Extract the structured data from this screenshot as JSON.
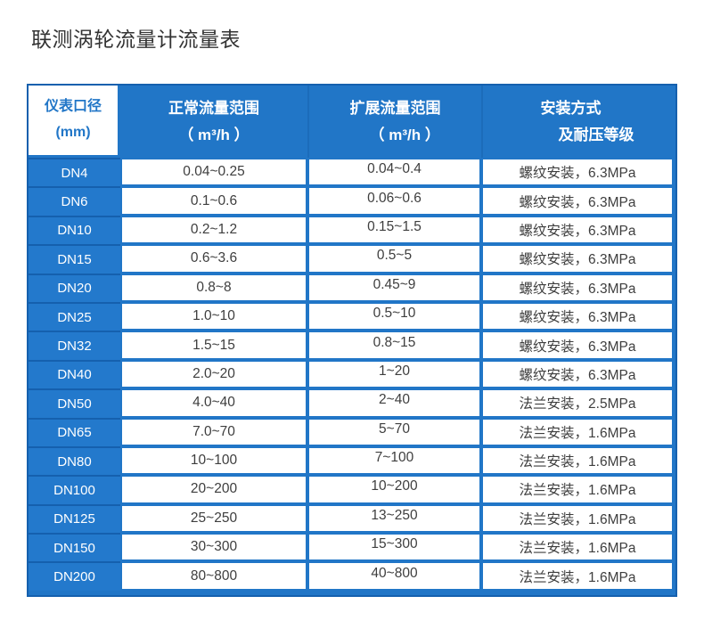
{
  "page": {
    "title": "联测涡轮流量计流量表"
  },
  "colors": {
    "primary_blue": "#2176C7",
    "dark_blue_border": "#1560AE",
    "dn_cell_blue": "#2379CC",
    "header_text": "#FFFFFF",
    "diameter_header_text": "#2176C7",
    "body_text": "#3E3E3E",
    "title_text": "#333333"
  },
  "table": {
    "header": {
      "diameter_line1": "仪表口径",
      "diameter_line2": "(mm)",
      "normal_line1": "正常流量范围",
      "normal_line2": "（ m³/h ）",
      "extended_line1": "扩展流量范围",
      "extended_line2": "（ m³/h ）",
      "install_line1": "安装方式",
      "install_line2": "及耐压等级"
    },
    "rows": [
      {
        "dn": "DN4",
        "normal": "0.04~0.25",
        "extended": "0.04~0.4",
        "install": "螺纹安装，6.3MPa"
      },
      {
        "dn": "DN6",
        "normal": "0.1~0.6",
        "extended": "0.06~0.6",
        "install": "螺纹安装，6.3MPa"
      },
      {
        "dn": "DN10",
        "normal": "0.2~1.2",
        "extended": "0.15~1.5",
        "install": "螺纹安装，6.3MPa"
      },
      {
        "dn": "DN15",
        "normal": "0.6~3.6",
        "extended": "0.5~5",
        "install": "螺纹安装，6.3MPa"
      },
      {
        "dn": "DN20",
        "normal": "0.8~8",
        "extended": "0.45~9",
        "install": "螺纹安装，6.3MPa"
      },
      {
        "dn": "DN25",
        "normal": "1.0~10",
        "extended": "0.5~10",
        "install": "螺纹安装，6.3MPa"
      },
      {
        "dn": "DN32",
        "normal": "1.5~15",
        "extended": "0.8~15",
        "install": "螺纹安装，6.3MPa"
      },
      {
        "dn": "DN40",
        "normal": "2.0~20",
        "extended": "1~20",
        "install": "螺纹安装，6.3MPa"
      },
      {
        "dn": "DN50",
        "normal": "4.0~40",
        "extended": "2~40",
        "install": "法兰安装，2.5MPa"
      },
      {
        "dn": "DN65",
        "normal": "7.0~70",
        "extended": "5~70",
        "install": "法兰安装，1.6MPa"
      },
      {
        "dn": "DN80",
        "normal": "10~100",
        "extended": "7~100",
        "install": "法兰安装，1.6MPa"
      },
      {
        "dn": "DN100",
        "normal": "20~200",
        "extended": "10~200",
        "install": "法兰安装，1.6MPa"
      },
      {
        "dn": "DN125",
        "normal": "25~250",
        "extended": "13~250",
        "install": "法兰安装，1.6MPa"
      },
      {
        "dn": "DN150",
        "normal": "30~300",
        "extended": "15~300",
        "install": "法兰安装，1.6MPa"
      },
      {
        "dn": "DN200",
        "normal": "80~800",
        "extended": "40~800",
        "install": "法兰安装，1.6MPa"
      }
    ]
  }
}
